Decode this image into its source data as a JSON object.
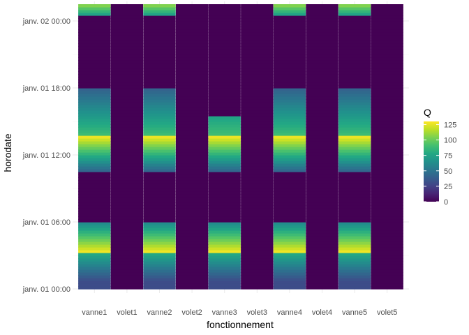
{
  "chart_data": {
    "type": "heatmap",
    "title": "",
    "xlabel": "fonctionnement",
    "ylabel": "horodate",
    "categories": [
      "vanne1",
      "volet1",
      "vanne2",
      "volet2",
      "vanne3",
      "volet3",
      "vanne4",
      "volet4",
      "vanne5",
      "volet5"
    ],
    "y_ticks": [
      "janv. 01 00:00",
      "janv. 01 06:00",
      "janv. 01 12:00",
      "janv. 01 18:00",
      "janv. 02 00:00"
    ],
    "y_tick_hours": [
      0,
      6,
      12,
      18,
      24
    ],
    "y_unit": "hours since janv. 01 00:00",
    "ylim": [
      0,
      25.5
    ],
    "color_scale": "viridis",
    "legend": {
      "title": "Q",
      "position": "right",
      "breaks": [
        0,
        25,
        50,
        75,
        100,
        125
      ],
      "min": 0,
      "max": 130
    },
    "grid": true,
    "series": [
      {
        "name": "vanne1",
        "profile": "vanne"
      },
      {
        "name": "volet1",
        "profile": "zero"
      },
      {
        "name": "vanne2",
        "profile": "vanne"
      },
      {
        "name": "volet2",
        "profile": "zero"
      },
      {
        "name": "vanne3",
        "profile": "vanne3"
      },
      {
        "name": "volet3",
        "profile": "zero"
      },
      {
        "name": "vanne4",
        "profile": "vanne"
      },
      {
        "name": "volet4",
        "profile": "zero"
      },
      {
        "name": "vanne5",
        "profile": "vanne"
      },
      {
        "name": "volet5",
        "profile": "zero"
      }
    ],
    "profiles": {
      "vanne": [
        {
          "from": 0,
          "to": 0.75,
          "q_start": 30,
          "q_end": 30
        },
        {
          "from": 0.75,
          "to": 3.25,
          "q_start": 30,
          "q_end": 80
        },
        {
          "from": 3.25,
          "to": 6,
          "q_start": 130,
          "q_end": 60
        },
        {
          "from": 6,
          "to": 10.5,
          "q_start": 0,
          "q_end": 0
        },
        {
          "from": 10.5,
          "to": 13.75,
          "q_start": 40,
          "q_end": 130
        },
        {
          "from": 13.75,
          "to": 18,
          "q_start": 90,
          "q_end": 40
        },
        {
          "from": 18,
          "to": 24.5,
          "q_start": 0,
          "q_end": 0
        },
        {
          "from": 24.5,
          "to": 25.5,
          "q_start": 70,
          "q_end": 110
        }
      ],
      "vanne3": [
        {
          "from": 0,
          "to": 0.75,
          "q_start": 30,
          "q_end": 30
        },
        {
          "from": 0.75,
          "to": 3.25,
          "q_start": 30,
          "q_end": 80
        },
        {
          "from": 3.25,
          "to": 6,
          "q_start": 130,
          "q_end": 60
        },
        {
          "from": 6,
          "to": 10.5,
          "q_start": 0,
          "q_end": 0
        },
        {
          "from": 10.5,
          "to": 13.75,
          "q_start": 40,
          "q_end": 130
        },
        {
          "from": 13.75,
          "to": 15.5,
          "q_start": 90,
          "q_end": 75
        },
        {
          "from": 15.5,
          "to": 25.5,
          "q_start": 0,
          "q_end": 0
        }
      ],
      "zero": [
        {
          "from": 0,
          "to": 25.5,
          "q_start": 0,
          "q_end": 0
        }
      ]
    }
  }
}
